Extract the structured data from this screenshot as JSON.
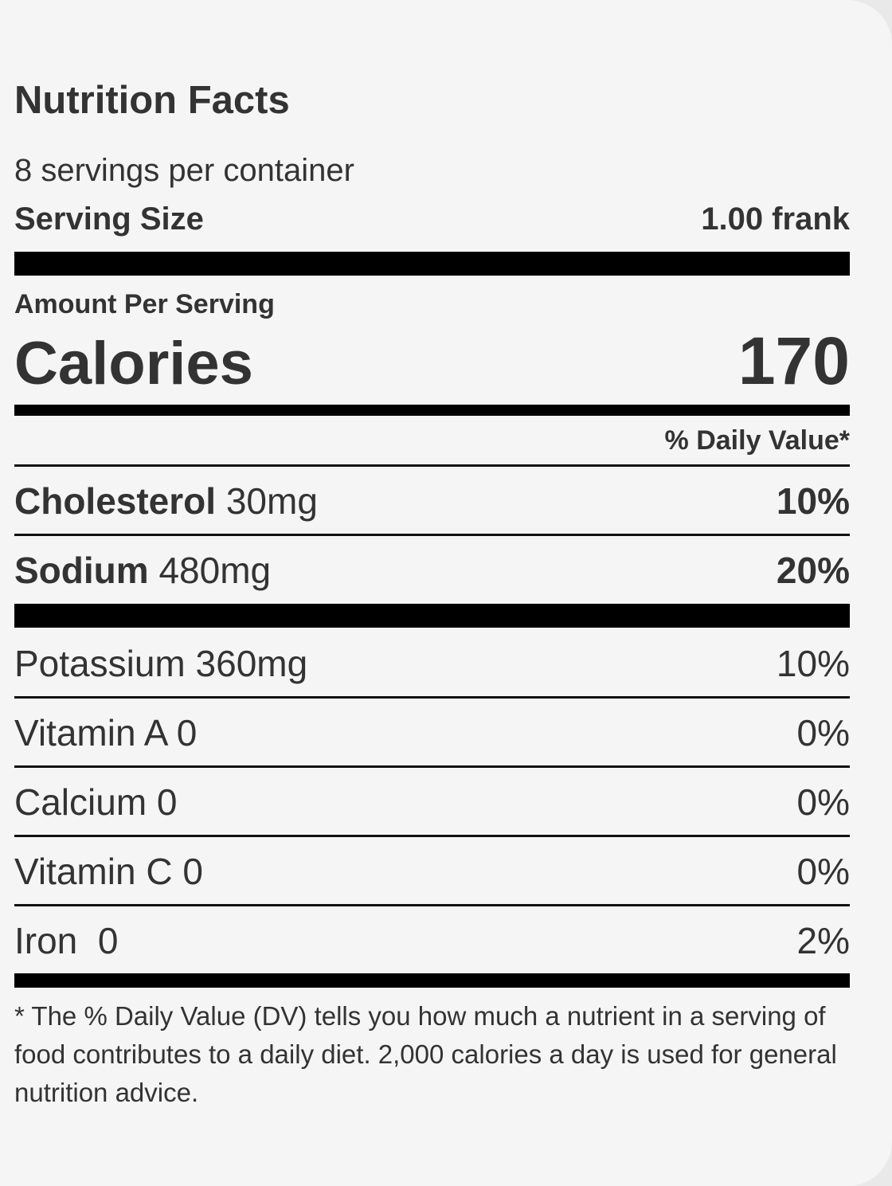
{
  "label": {
    "title": "Nutrition Facts",
    "servings_per_container": "8 servings per container",
    "serving_size_label": "Serving Size",
    "serving_size_value": "1.00 frank",
    "amount_per_serving": "Amount Per Serving",
    "calories_label": "Calories",
    "calories_value": "170",
    "daily_value_header": "% Daily Value*",
    "primary_nutrients": [
      {
        "name": "Cholesterol",
        "amount": "30mg",
        "percent": "10%"
      },
      {
        "name": "Sodium",
        "amount": "480mg",
        "percent": "20%"
      }
    ],
    "secondary_nutrients": [
      {
        "text": "Potassium 360mg",
        "percent": "10%"
      },
      {
        "text": "Vitamin A 0",
        "percent": "0%"
      },
      {
        "text": "Calcium 0",
        "percent": "0%"
      },
      {
        "text": "Vitamin C 0",
        "percent": "0%"
      },
      {
        "text": "Iron  0",
        "percent": "2%"
      }
    ],
    "footnote": "* The % Daily Value (DV) tells you how much a nutrient in a serving of food contributes to a daily diet. 2,000 calories a day is used for general nutrition advice."
  },
  "colors": {
    "text": "#333333",
    "bars": "#000000",
    "background": "#f5f5f5"
  }
}
